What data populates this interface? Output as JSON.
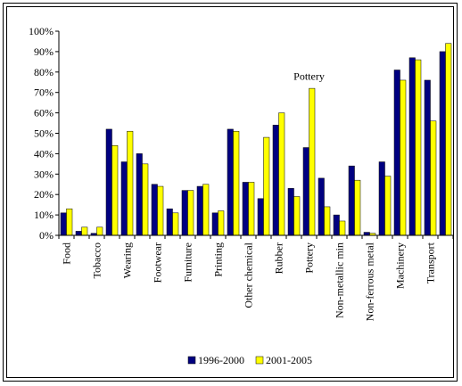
{
  "chart_data": {
    "type": "bar",
    "title": "",
    "xlabel": "",
    "ylabel": "",
    "ylim": [
      0,
      100
    ],
    "yticks": [
      "0%",
      "10%",
      "20%",
      "30%",
      "40%",
      "50%",
      "60%",
      "70%",
      "80%",
      "90%",
      "100%"
    ],
    "grid": false,
    "legend_position": "bottom",
    "categories": [
      "Food",
      "",
      "Tobacco",
      "",
      "Wearing",
      "",
      "Footwear",
      "",
      "Furniture",
      "",
      "Printing",
      "",
      "Other chemical",
      "",
      "Rubber",
      "",
      "Pottery",
      "",
      "Non-metallic min",
      "",
      "Non-ferrous metal",
      "",
      "Machinery",
      "",
      "Transport",
      ""
    ],
    "series": [
      {
        "name": "1996-2000",
        "color": "#000080",
        "values": [
          11,
          2,
          1,
          52,
          36,
          40,
          25,
          13,
          22,
          24,
          11,
          52,
          26,
          18,
          54,
          23,
          43,
          28,
          10,
          34,
          1.5,
          36,
          81,
          87,
          76,
          90
        ]
      },
      {
        "name": "2001-2005",
        "color": "#ffff00",
        "values": [
          13,
          4,
          4,
          44,
          51,
          35,
          24,
          11,
          22,
          25,
          12,
          51,
          26,
          48,
          60,
          19,
          72,
          14,
          7,
          27,
          1,
          29,
          76,
          86,
          56,
          94
        ]
      }
    ],
    "annotations": [
      {
        "text": "Pottery",
        "x": "Pottery",
        "y": 78
      }
    ]
  }
}
